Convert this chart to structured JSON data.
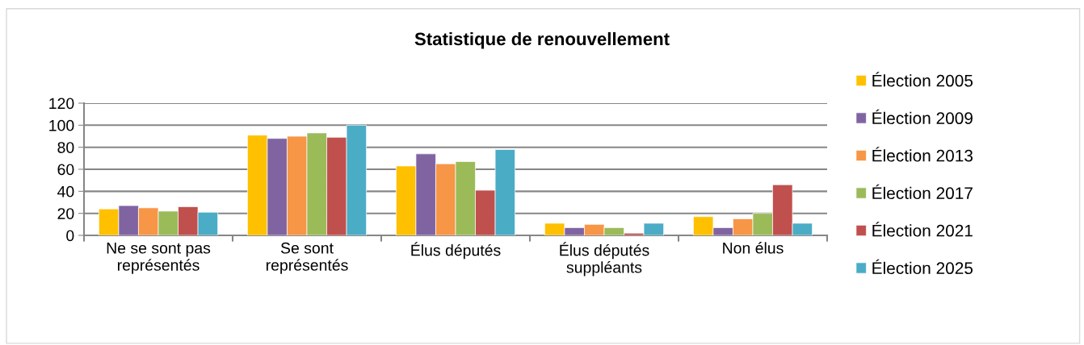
{
  "chart_data": {
    "type": "bar",
    "title": "Statistique de renouvellement",
    "categories": [
      "Ne se sont pas\nreprésentés",
      "Se sont\nreprésentés",
      "Élus députés",
      "Élus députés\nsuppléants",
      "Non élus"
    ],
    "series": [
      {
        "name": "Élection 2005",
        "color": "#ffc000",
        "values": [
          24,
          91,
          63,
          11,
          17
        ]
      },
      {
        "name": "Élection 2009",
        "color": "#8064a2",
        "values": [
          27,
          88,
          74,
          7,
          7
        ]
      },
      {
        "name": "Élection 2013",
        "color": "#f79646",
        "values": [
          25,
          90,
          65,
          10,
          15
        ]
      },
      {
        "name": "Élection 2017",
        "color": "#9bbb59",
        "values": [
          22,
          93,
          67,
          7,
          20
        ]
      },
      {
        "name": "Élection 2021",
        "color": "#c0504d",
        "values": [
          26,
          89,
          41,
          2,
          46
        ]
      },
      {
        "name": "Élection 2025",
        "color": "#4bacc6",
        "values": [
          21,
          100,
          78,
          11,
          11
        ]
      }
    ],
    "ylim": [
      0,
      120
    ],
    "yticks": [
      0,
      20,
      40,
      60,
      80,
      100,
      120
    ],
    "grid": "y",
    "legend": "right"
  }
}
